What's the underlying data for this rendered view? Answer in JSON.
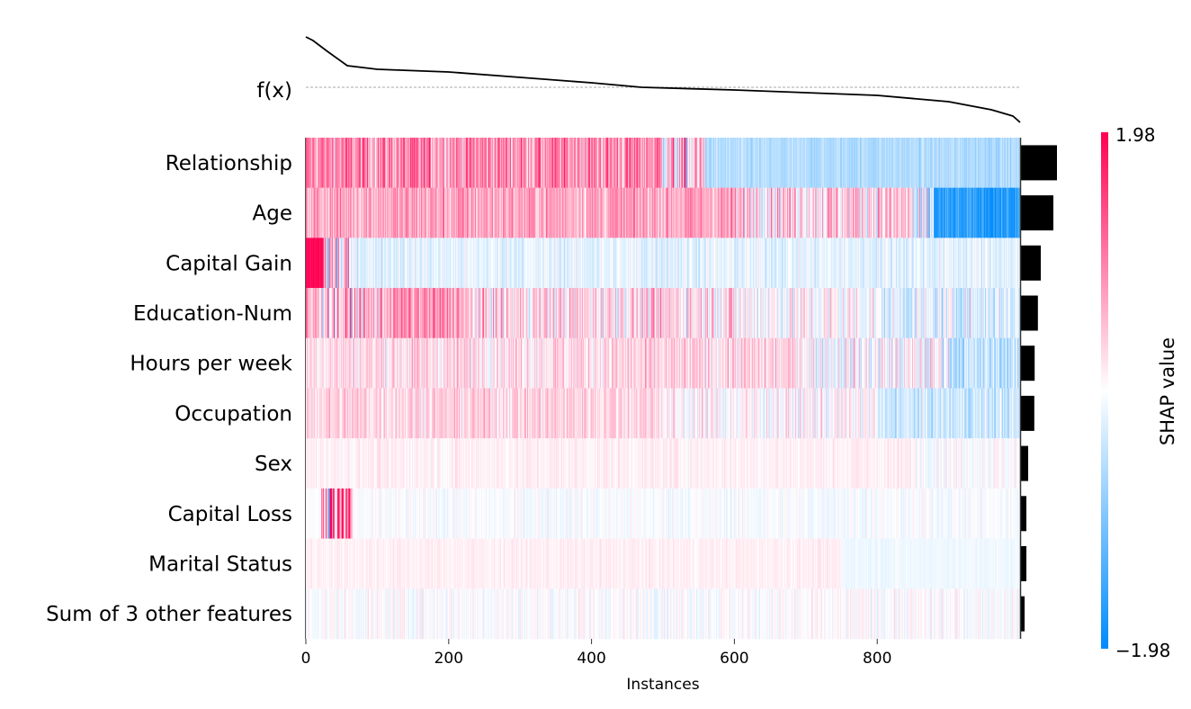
{
  "chart_data": {
    "type": "heatmap",
    "xlabel": "Instances",
    "x_ticks": [
      0,
      200,
      400,
      600,
      800
    ],
    "xlim": [
      0,
      1000
    ],
    "fx_label": "f(x)",
    "colorbar": {
      "label": "SHAP value",
      "min": -1.98,
      "max": 1.98,
      "min_label": "−1.98",
      "max_label": "1.98",
      "colors": {
        "low": "#008bfb",
        "mid": "#ffffff",
        "high": "#ff0052"
      }
    },
    "features": [
      {
        "name": "Relationship",
        "importance": 1.0,
        "segments": [
          [
            0,
            500,
            0.9,
            0.5
          ],
          [
            500,
            560,
            0.3,
            0.8
          ],
          [
            560,
            1000,
            -0.6,
            0.15
          ]
        ]
      },
      {
        "name": "Age",
        "importance": 0.9,
        "segments": [
          [
            0,
            600,
            0.7,
            0.35
          ],
          [
            600,
            850,
            0.4,
            0.5
          ],
          [
            850,
            880,
            -0.6,
            0.8
          ],
          [
            880,
            1000,
            -1.7,
            0.3
          ]
        ]
      },
      {
        "name": "Capital Gain",
        "importance": 0.55,
        "segments": [
          [
            0,
            25,
            1.9,
            0.1
          ],
          [
            25,
            60,
            0.2,
            1.2
          ],
          [
            60,
            1000,
            -0.2,
            0.2
          ]
        ]
      },
      {
        "name": "Education-Num",
        "importance": 0.47,
        "segments": [
          [
            0,
            110,
            0.5,
            0.6
          ],
          [
            110,
            220,
            0.8,
            0.4
          ],
          [
            220,
            600,
            0.3,
            0.45
          ],
          [
            600,
            800,
            0.05,
            0.4
          ],
          [
            800,
            1000,
            -0.25,
            0.35
          ]
        ]
      },
      {
        "name": "Hours per week",
        "importance": 0.38,
        "segments": [
          [
            0,
            700,
            0.3,
            0.3
          ],
          [
            700,
            900,
            0.0,
            0.4
          ],
          [
            900,
            1000,
            -0.5,
            0.3
          ]
        ]
      },
      {
        "name": "Occupation",
        "importance": 0.37,
        "segments": [
          [
            0,
            500,
            0.35,
            0.25
          ],
          [
            500,
            800,
            0.05,
            0.3
          ],
          [
            800,
            1000,
            -0.4,
            0.25
          ]
        ]
      },
      {
        "name": "Sex",
        "importance": 0.2,
        "segments": [
          [
            0,
            850,
            0.12,
            0.1
          ],
          [
            850,
            1000,
            0.02,
            0.15
          ]
        ]
      },
      {
        "name": "Capital Loss",
        "importance": 0.15,
        "segments": [
          [
            0,
            22,
            0.0,
            0.05
          ],
          [
            22,
            65,
            1.0,
            1.2
          ],
          [
            65,
            1000,
            -0.05,
            0.12
          ]
        ]
      },
      {
        "name": "Marital Status",
        "importance": 0.15,
        "segments": [
          [
            0,
            750,
            0.12,
            0.07
          ],
          [
            750,
            1000,
            -0.12,
            0.05
          ]
        ]
      },
      {
        "name": "Sum of 3 other features",
        "importance": 0.1,
        "segments": [
          [
            0,
            1000,
            0.0,
            0.15
          ]
        ]
      }
    ],
    "fx_relative": {
      "x": [
        0,
        10,
        30,
        58,
        100,
        200,
        300,
        400,
        470,
        600,
        700,
        800,
        900,
        960,
        990,
        1000
      ],
      "y": [
        2.8,
        2.6,
        2.0,
        1.2,
        1.0,
        0.85,
        0.55,
        0.25,
        0.0,
        -0.15,
        -0.3,
        -0.45,
        -0.8,
        -1.25,
        -1.6,
        -1.95
      ]
    }
  }
}
